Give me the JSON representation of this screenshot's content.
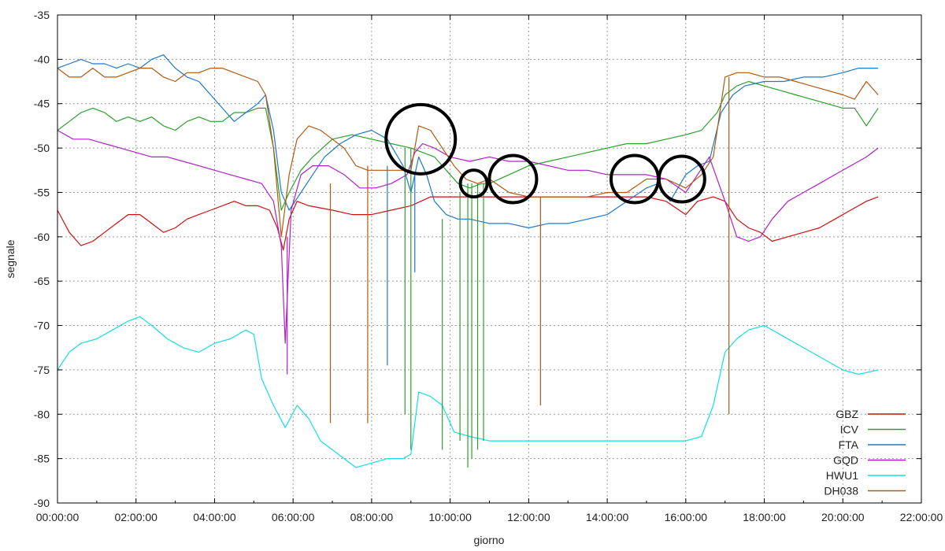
{
  "chart_data": {
    "type": "line",
    "title": "",
    "xlabel": "giorno",
    "ylabel": "segnale",
    "xlim_hours": [
      0,
      22
    ],
    "ylim": [
      -90,
      -35
    ],
    "grid": true,
    "legend_position": "bottom-right",
    "x_tick_labels": [
      "00:00:00",
      "02:00:00",
      "04:00:00",
      "06:00:00",
      "08:00:00",
      "10:00:00",
      "12:00:00",
      "14:00:00",
      "16:00:00",
      "18:00:00",
      "20:00:00",
      "22:00:00"
    ],
    "y_ticks": [
      -35,
      -40,
      -45,
      -50,
      -55,
      -60,
      -65,
      -70,
      -75,
      -80,
      -85,
      -90
    ],
    "series": [
      {
        "name": "GBZ",
        "color": "#cc1111",
        "x": [
          0.0,
          0.3,
          0.6,
          0.9,
          1.2,
          1.5,
          1.8,
          2.1,
          2.4,
          2.7,
          3.0,
          3.3,
          3.6,
          3.9,
          4.2,
          4.5,
          4.8,
          5.1,
          5.4,
          5.6,
          5.75,
          5.9,
          6.1,
          6.4,
          7.0,
          7.5,
          8.0,
          8.5,
          9.0,
          9.5,
          10.0,
          11.0,
          12.0,
          13.0,
          14.0,
          15.0,
          15.5,
          16.0,
          16.3,
          16.7,
          17.0,
          17.3,
          17.6,
          17.9,
          18.2,
          18.6,
          19.0,
          19.4,
          19.8,
          20.2,
          20.6,
          20.9
        ],
        "y": [
          -57,
          -59.5,
          -61,
          -60.5,
          -59.5,
          -58.5,
          -57.5,
          -57.5,
          -58.5,
          -59.5,
          -59,
          -58,
          -57.5,
          -57,
          -56.5,
          -56,
          -56.5,
          -56.5,
          -57,
          -59,
          -61.5,
          -58,
          -56,
          -56.5,
          -57,
          -57.5,
          -57.5,
          -57,
          -56.5,
          -55.5,
          -55.5,
          -55.5,
          -55.5,
          -55.5,
          -55.5,
          -55.5,
          -56,
          -57.5,
          -56,
          -55.5,
          -56,
          -58,
          -59,
          -59.5,
          -60.5,
          -60,
          -59.5,
          -59,
          -58,
          -57,
          -56,
          -55.5
        ]
      },
      {
        "name": "ICV",
        "color": "#2ca02c",
        "x": [
          0.0,
          0.3,
          0.6,
          0.9,
          1.2,
          1.5,
          1.8,
          2.1,
          2.4,
          2.7,
          3.0,
          3.3,
          3.6,
          3.9,
          4.2,
          4.5,
          4.8,
          5.1,
          5.3,
          5.5,
          5.7,
          5.9,
          6.2,
          6.5,
          7.0,
          7.5,
          8.0,
          8.5,
          9.0,
          9.3,
          9.6,
          9.9,
          10.2,
          10.5,
          10.8,
          11.0,
          11.5,
          12.0,
          12.5,
          13.0,
          13.5,
          14.0,
          14.5,
          15.0,
          15.5,
          16.0,
          16.4,
          16.8,
          17.0,
          17.3,
          17.6,
          18.0,
          18.4,
          18.8,
          19.2,
          19.6,
          20.0,
          20.3,
          20.6,
          20.9
        ],
        "y": [
          -48,
          -47,
          -46,
          -45.5,
          -46,
          -47,
          -46.5,
          -47,
          -46.5,
          -47.5,
          -48,
          -47,
          -46.5,
          -47,
          -47,
          -46,
          -46,
          -45.5,
          -45.5,
          -50,
          -57,
          -55,
          -52.5,
          -51,
          -49,
          -48.5,
          -49,
          -49.5,
          -50,
          -50.5,
          -51,
          -52.5,
          -54,
          -54.5,
          -54,
          -54,
          -53,
          -52,
          -51.5,
          -51,
          -50.5,
          -50,
          -49.5,
          -49.5,
          -49,
          -48.5,
          -48,
          -46,
          -44,
          -43,
          -42.5,
          -43,
          -43.5,
          -44,
          -44.5,
          -45,
          -45.5,
          -45.5,
          -47.5,
          -45.5
        ]
      },
      {
        "name": "FTA",
        "color": "#1f78c8",
        "x": [
          0.0,
          0.3,
          0.6,
          0.9,
          1.2,
          1.5,
          1.8,
          2.1,
          2.4,
          2.7,
          3.0,
          3.3,
          3.6,
          3.9,
          4.2,
          4.5,
          4.8,
          5.1,
          5.3,
          5.5,
          5.7,
          5.9,
          6.2,
          6.5,
          6.8,
          7.2,
          7.6,
          8.0,
          8.4,
          8.8,
          9.0,
          9.2,
          9.4,
          9.6,
          9.9,
          10.2,
          10.5,
          11.0,
          11.5,
          12.0,
          12.5,
          13.0,
          13.5,
          14.0,
          14.5,
          15.0,
          15.3,
          15.6,
          16.0,
          16.3,
          16.6,
          16.9,
          17.2,
          17.5,
          18.0,
          18.5,
          19.0,
          19.5,
          20.0,
          20.4,
          20.9
        ],
        "y": [
          -41,
          -40.5,
          -40,
          -40.5,
          -40.5,
          -41,
          -40.5,
          -41,
          -40,
          -39.5,
          -41,
          -42,
          -42.5,
          -44,
          -45.5,
          -47,
          -46,
          -45,
          -44,
          -48,
          -55,
          -57,
          -55,
          -53,
          -51,
          -49.5,
          -48.5,
          -48,
          -49,
          -52,
          -55,
          -51,
          -53,
          -56,
          -57.5,
          -58,
          -58,
          -58.5,
          -58.5,
          -59,
          -58.5,
          -58.5,
          -58,
          -57.5,
          -56,
          -54.5,
          -54,
          -56,
          -53,
          -52,
          -51.5,
          -46,
          -44,
          -43,
          -42.5,
          -42.5,
          -42,
          -42,
          -41.5,
          -41,
          -41
        ]
      },
      {
        "name": "GQD",
        "color": "#b020c8",
        "x": [
          0.0,
          0.4,
          0.8,
          1.2,
          1.6,
          2.0,
          2.4,
          2.8,
          3.2,
          3.6,
          4.0,
          4.4,
          4.8,
          5.2,
          5.5,
          5.7,
          5.8,
          5.95,
          6.2,
          6.5,
          6.9,
          7.3,
          7.7,
          8.1,
          8.5,
          8.9,
          9.1,
          9.3,
          9.6,
          10.0,
          10.5,
          11.0,
          11.5,
          12.0,
          12.5,
          13.0,
          13.5,
          14.0,
          14.5,
          15.0,
          15.5,
          16.0,
          16.3,
          16.6,
          17.0,
          17.3,
          17.6,
          17.9,
          18.2,
          18.6,
          19.0,
          19.4,
          19.8,
          20.2,
          20.6,
          20.9
        ],
        "y": [
          -48,
          -49,
          -49,
          -49.5,
          -50,
          -50.5,
          -51,
          -51,
          -51.5,
          -52,
          -52.5,
          -53,
          -53.5,
          -54,
          -56,
          -61,
          -72,
          -57,
          -53,
          -52,
          -52,
          -53,
          -54.5,
          -54.5,
          -54,
          -53,
          -50.5,
          -49.5,
          -50,
          -51,
          -51.5,
          -51,
          -51.5,
          -51.5,
          -52,
          -52.5,
          -52.5,
          -53,
          -53,
          -53,
          -53.5,
          -55,
          -53,
          -51,
          -56,
          -60,
          -60.5,
          -60,
          -58,
          -56,
          -55,
          -54,
          -53,
          -52,
          -51,
          -50
        ]
      },
      {
        "name": "HWU1",
        "color": "#14e0e0",
        "x": [
          0.0,
          0.3,
          0.6,
          1.0,
          1.4,
          1.8,
          2.1,
          2.4,
          2.8,
          3.2,
          3.6,
          4.0,
          4.4,
          4.8,
          5.0,
          5.2,
          5.5,
          5.8,
          6.1,
          6.4,
          6.7,
          7.0,
          7.3,
          7.6,
          8.0,
          8.4,
          8.8,
          9.0,
          9.2,
          9.5,
          9.8,
          10.1,
          10.5,
          11.0,
          11.5,
          12.0,
          12.5,
          13.0,
          13.5,
          14.0,
          14.5,
          15.0,
          15.5,
          16.0,
          16.4,
          16.7,
          17.0,
          17.3,
          17.6,
          18.0,
          18.4,
          18.8,
          19.2,
          19.6,
          20.0,
          20.4,
          20.9
        ],
        "y": [
          -75,
          -73,
          -72,
          -71.5,
          -70.5,
          -69.5,
          -69,
          -70,
          -71.5,
          -72.5,
          -73,
          -72,
          -71.5,
          -70.5,
          -71,
          -76,
          -79,
          -81.5,
          -79,
          -80.5,
          -83,
          -84,
          -85,
          -86,
          -85.5,
          -85,
          -85,
          -84.5,
          -77.5,
          -78,
          -79,
          -82,
          -82.5,
          -83,
          -83,
          -83,
          -83,
          -83,
          -83,
          -83,
          -83,
          -83,
          -83,
          -83,
          -82.5,
          -79,
          -73,
          -71.5,
          -70.5,
          -70,
          -71,
          -72,
          -73,
          -74,
          -75,
          -75.5,
          -75
        ]
      },
      {
        "name": "DH038",
        "color": "#b05a10",
        "x": [
          0.0,
          0.3,
          0.6,
          0.9,
          1.2,
          1.5,
          1.8,
          2.1,
          2.4,
          2.7,
          3.0,
          3.3,
          3.6,
          3.9,
          4.2,
          4.5,
          4.8,
          5.1,
          5.3,
          5.5,
          5.7,
          5.9,
          6.1,
          6.4,
          6.7,
          7.0,
          7.3,
          7.6,
          7.9,
          8.2,
          8.6,
          9.0,
          9.2,
          9.5,
          9.8,
          10.1,
          10.4,
          10.7,
          11.0,
          11.5,
          12.0,
          12.5,
          13.0,
          13.5,
          14.0,
          14.5,
          15.0,
          15.5,
          16.0,
          16.4,
          16.7,
          17.0,
          17.3,
          17.6,
          18.0,
          18.4,
          18.8,
          19.2,
          19.6,
          20.0,
          20.3,
          20.6,
          20.9
        ],
        "y": [
          -41,
          -42,
          -42,
          -41,
          -42,
          -42,
          -41.5,
          -41,
          -41,
          -42,
          -42.5,
          -41.5,
          -41.5,
          -41,
          -41,
          -41.5,
          -42,
          -42.5,
          -44,
          -50,
          -60,
          -53,
          -49,
          -47.5,
          -48,
          -49,
          -50,
          -52,
          -52.5,
          -52.5,
          -52.5,
          -52.5,
          -47.5,
          -48,
          -50,
          -52,
          -53.5,
          -54,
          -53.5,
          -55,
          -55.5,
          -55.5,
          -55.5,
          -55.5,
          -55,
          -55,
          -53.5,
          -53.5,
          -54.5,
          -53,
          -51,
          -42,
          -41.5,
          -41.5,
          -42,
          -42,
          -42.5,
          -43,
          -43.5,
          -44,
          -44.5,
          -42.5,
          -44
        ]
      }
    ],
    "spikes": [
      {
        "series": "DH038",
        "x": 6.95,
        "y_from": -54,
        "y_to": -81
      },
      {
        "series": "DH038",
        "x": 7.9,
        "y_from": -52,
        "y_to": -81
      },
      {
        "series": "DH038",
        "x": 12.3,
        "y_from": -55.5,
        "y_to": -79
      },
      {
        "series": "DH038",
        "x": 17.1,
        "y_from": -42,
        "y_to": -80
      },
      {
        "series": "FTA",
        "x": 8.4,
        "y_from": -52,
        "y_to": -74.5
      },
      {
        "series": "FTA",
        "x": 9.1,
        "y_from": -53,
        "y_to": -64
      },
      {
        "series": "ICV",
        "x": 8.85,
        "y_from": -50,
        "y_to": -80
      },
      {
        "series": "ICV",
        "x": 9.0,
        "y_from": -50,
        "y_to": -84
      },
      {
        "series": "ICV",
        "x": 9.8,
        "y_from": -58,
        "y_to": -84
      },
      {
        "series": "ICV",
        "x": 10.25,
        "y_from": -55,
        "y_to": -83
      },
      {
        "series": "ICV",
        "x": 10.45,
        "y_from": -54,
        "y_to": -86
      },
      {
        "series": "ICV",
        "x": 10.55,
        "y_from": -54,
        "y_to": -85
      },
      {
        "series": "ICV",
        "x": 10.7,
        "y_from": -54,
        "y_to": -84
      },
      {
        "series": "ICV",
        "x": 10.85,
        "y_from": -54,
        "y_to": -83
      },
      {
        "series": "GQD",
        "x": 5.85,
        "y_from": -60,
        "y_to": -75.5
      }
    ],
    "annotation_circles": [
      {
        "x": 9.25,
        "y": -49
      },
      {
        "x": 10.6,
        "y": -54
      },
      {
        "x": 11.6,
        "y": -53.5
      },
      {
        "x": 14.7,
        "y": -53.5
      },
      {
        "x": 15.9,
        "y": -53.5
      }
    ]
  }
}
